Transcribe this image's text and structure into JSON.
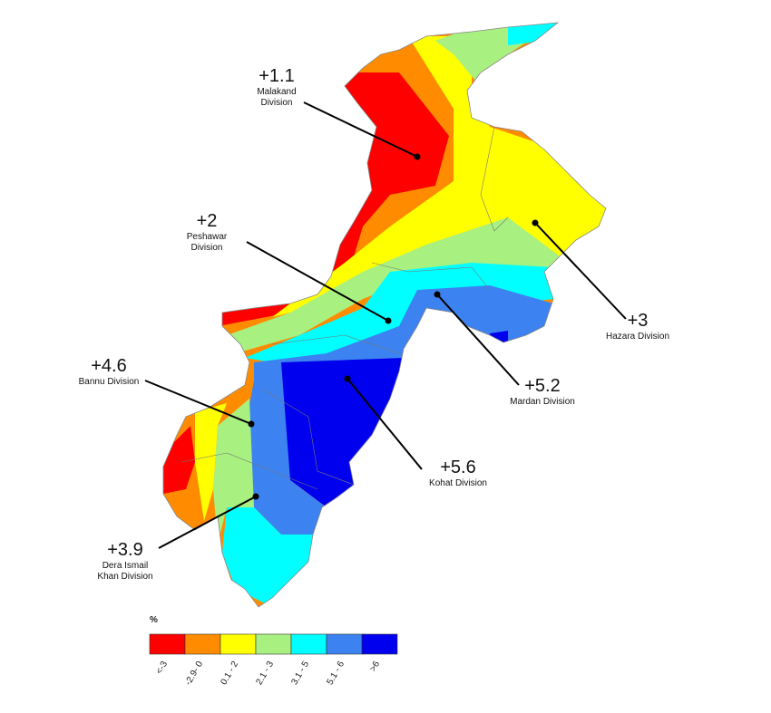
{
  "map": {
    "annotations": [
      {
        "value": "+1.1",
        "name": [
          "Malakand",
          "Division"
        ]
      },
      {
        "value": "+2",
        "name": [
          "Peshawar",
          "Division"
        ]
      },
      {
        "value": "+3",
        "name": [
          "Hazara Division"
        ]
      },
      {
        "value": "+4.6",
        "name": [
          "Bannu Division"
        ]
      },
      {
        "value": "+5.2",
        "name": [
          "Mardan Division"
        ]
      },
      {
        "value": "+5.6",
        "name": [
          "Kohat Division"
        ]
      },
      {
        "value": "+3.9",
        "name": [
          "Dera Ismail",
          "Khan Division"
        ]
      }
    ],
    "legend": {
      "unit": "%",
      "classes": [
        {
          "label": "<-3",
          "color": "#ff0000"
        },
        {
          "label": "-2.9- 0",
          "color": "#ff8c00"
        },
        {
          "label": "0.1 - 2",
          "color": "#ffff00"
        },
        {
          "label": "2.1 - 3",
          "color": "#a8f080"
        },
        {
          "label": "3.1 - 5",
          "color": "#00ffff"
        },
        {
          "label": "5.1 - 6",
          "color": "#3c82f0"
        },
        {
          "label": ">6",
          "color": "#0000ee"
        }
      ]
    }
  }
}
